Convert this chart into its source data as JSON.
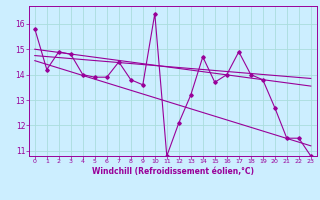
{
  "xlabel": "Windchill (Refroidissement éolien,°C)",
  "bg_color": "#cceeff",
  "grid_color": "#aadddd",
  "line_color": "#990099",
  "xlim": [
    -0.5,
    23.5
  ],
  "ylim": [
    10.8,
    16.7
  ],
  "yticks": [
    11,
    12,
    13,
    14,
    15,
    16
  ],
  "xticks": [
    0,
    1,
    2,
    3,
    4,
    5,
    6,
    7,
    8,
    9,
    10,
    11,
    12,
    13,
    14,
    15,
    16,
    17,
    18,
    19,
    20,
    21,
    22,
    23
  ],
  "series1_x": [
    0,
    1,
    2,
    3,
    4,
    5,
    6,
    7,
    8,
    9,
    10,
    11,
    12,
    13,
    14,
    15,
    16,
    17,
    18,
    19,
    20,
    21,
    22,
    23
  ],
  "series1_y": [
    15.8,
    14.2,
    14.9,
    14.8,
    14.0,
    13.9,
    13.9,
    14.5,
    13.8,
    13.6,
    16.4,
    10.8,
    12.1,
    13.2,
    14.7,
    13.7,
    14.0,
    14.9,
    14.0,
    13.8,
    12.7,
    11.5,
    11.5,
    10.8
  ],
  "trend1_x": [
    0,
    23
  ],
  "trend1_y": [
    15.0,
    13.55
  ],
  "trend2_x": [
    0,
    23
  ],
  "trend2_y": [
    14.55,
    11.2
  ],
  "trend3_x": [
    0,
    23
  ],
  "trend3_y": [
    14.75,
    13.85
  ]
}
